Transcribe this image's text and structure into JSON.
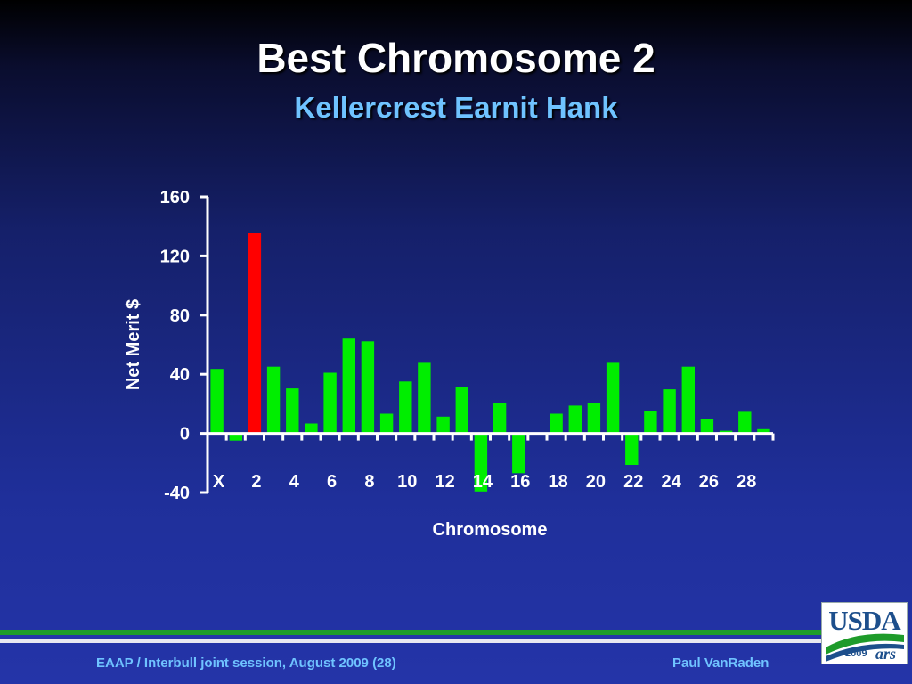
{
  "slide": {
    "title": "Best Chromosome 2",
    "subtitle": "Kellercrest Earnit Hank",
    "footer_left": "EAAP / Interbull joint session, August 2009 (28)",
    "footer_right": "Paul VanRaden",
    "logo_text": "USDA",
    "logo_year": "2009",
    "logo_ars": "ars"
  },
  "colors": {
    "bar_default": "#00ee00",
    "bar_highlight": "#ff0000",
    "axis": "#ffffff"
  },
  "chart_data": {
    "type": "bar",
    "xlabel": "Chromosome",
    "ylabel": "Net Merit $",
    "ylim": [
      -40,
      160
    ],
    "yticks": [
      -40,
      0,
      40,
      80,
      120,
      160
    ],
    "categories": [
      "X",
      "1",
      "2",
      "3",
      "4",
      "5",
      "6",
      "7",
      "8",
      "9",
      "10",
      "11",
      "12",
      "13",
      "14",
      "15",
      "16",
      "17",
      "18",
      "19",
      "20",
      "21",
      "22",
      "23",
      "24",
      "25",
      "26",
      "27",
      "28",
      "29"
    ],
    "tick_labels": [
      "X",
      "",
      "2",
      "",
      "4",
      "",
      "6",
      "",
      "8",
      "",
      "10",
      "",
      "12",
      "",
      "14",
      "",
      "16",
      "",
      "18",
      "",
      "20",
      "",
      "22",
      "",
      "24",
      "",
      "26",
      "",
      "28",
      ""
    ],
    "values": [
      43.6,
      -4.9,
      135.3,
      45.1,
      30.4,
      6.7,
      41.0,
      64.1,
      62.2,
      13.3,
      35.1,
      47.7,
      11.3,
      31.3,
      -39.3,
      20.5,
      -26.9,
      0,
      13.3,
      18.8,
      20.5,
      47.7,
      -21.3,
      14.8,
      29.8,
      45.1,
      9.4,
      1.8,
      14.6,
      2.9
    ],
    "highlight_category": "2",
    "grid": false,
    "legend": "none"
  }
}
